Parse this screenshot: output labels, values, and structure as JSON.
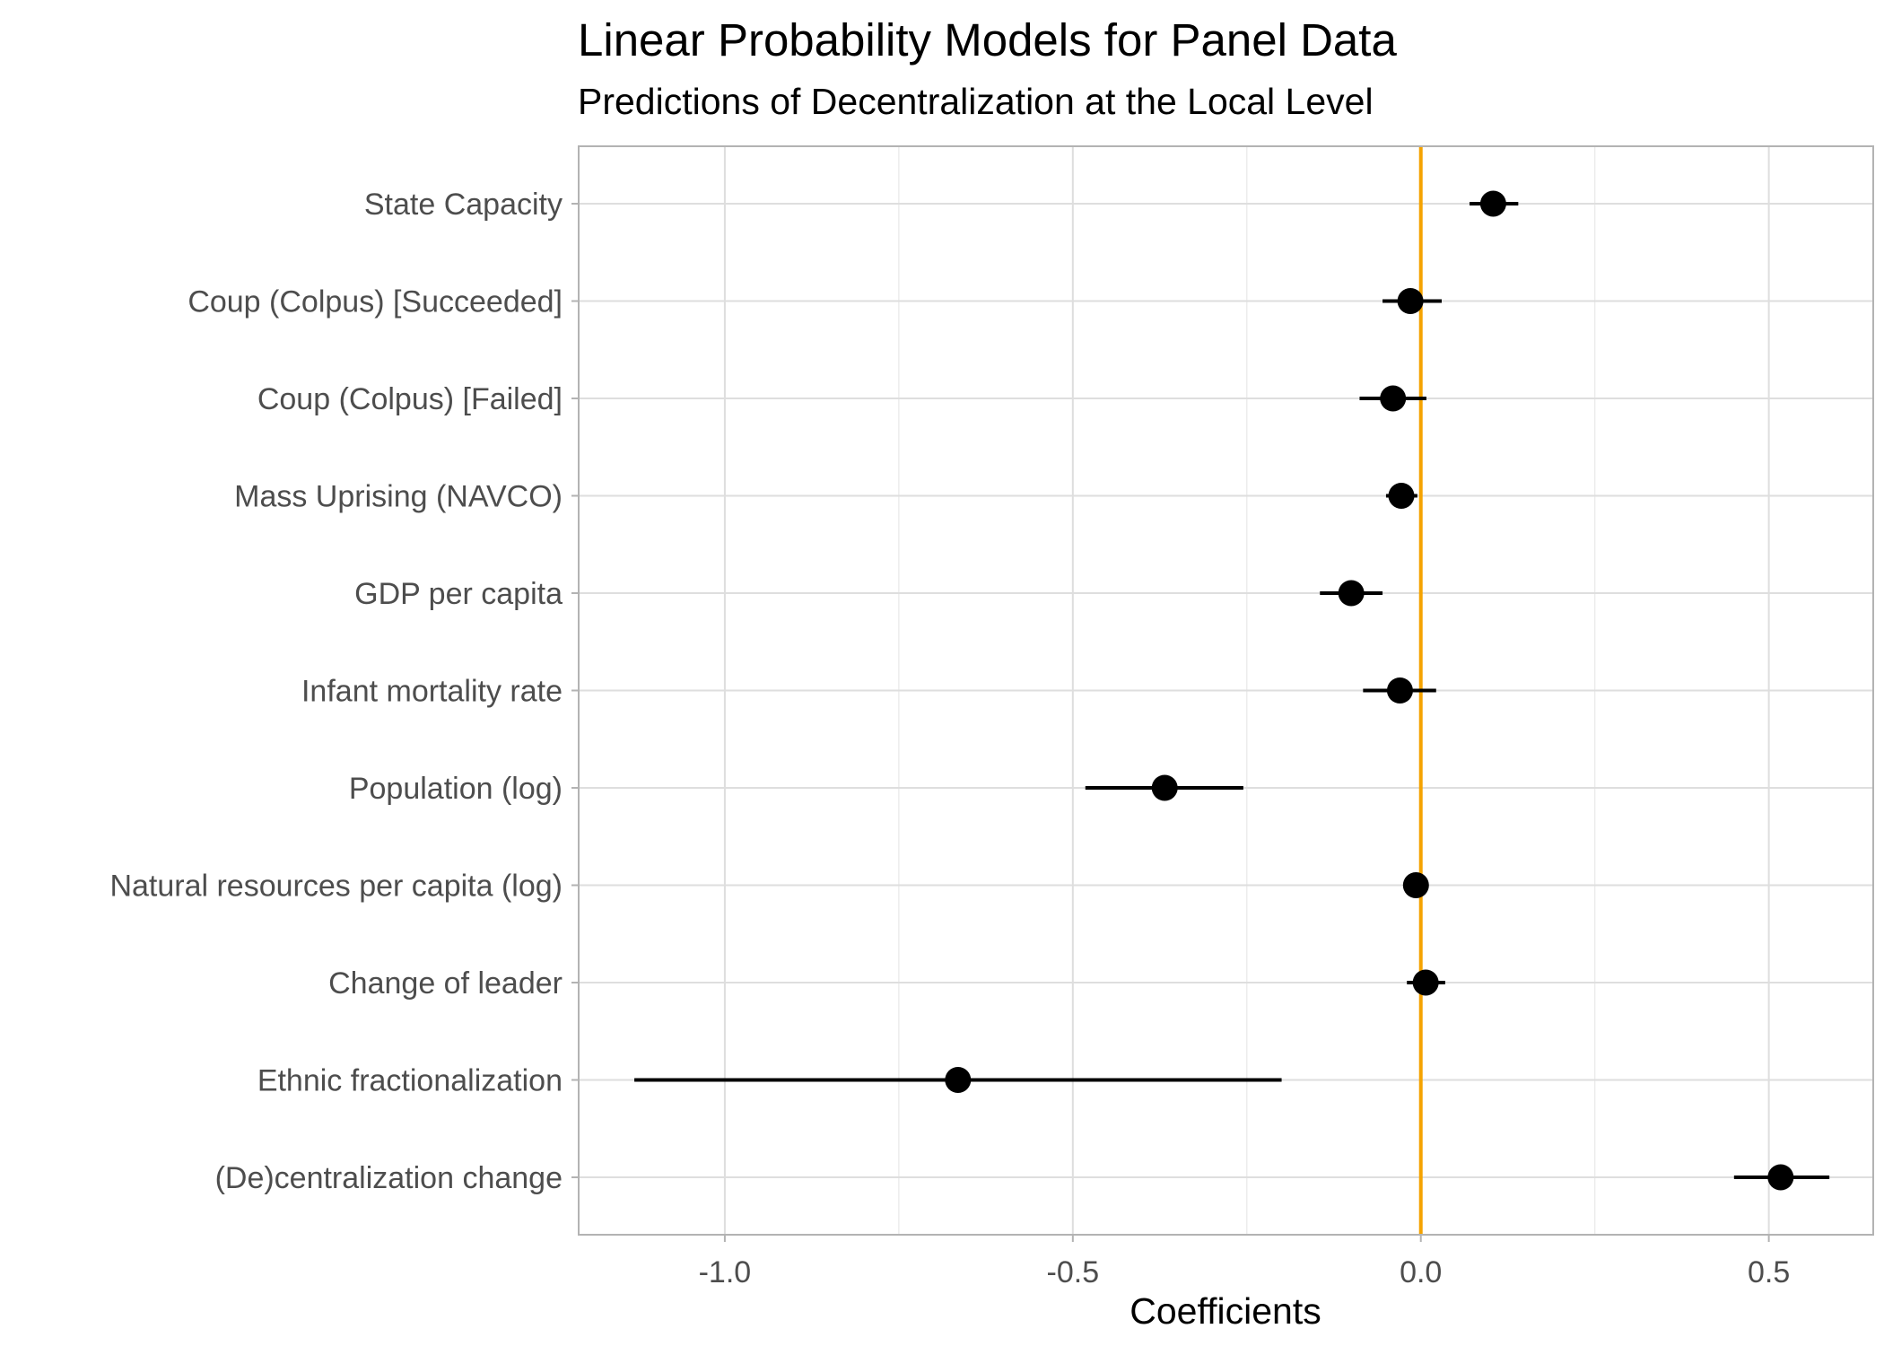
{
  "chart_data": {
    "type": "scatter",
    "title": "Linear Probability Models for Panel Data",
    "subtitle": "Predictions of Decentralization at the Local Level",
    "xlabel": "Coefficients",
    "ylabel": "",
    "xlim": [
      -1.21,
      0.65
    ],
    "x_ticks": [
      -1.0,
      -0.5,
      0.0,
      0.5
    ],
    "x_tick_labels": [
      "-1.0",
      "-0.5",
      "0.0",
      "0.5"
    ],
    "grid": true,
    "reference_line": {
      "x": 0,
      "color": "#f5a300"
    },
    "point_color": "#000000",
    "series": [
      {
        "points": [
          {
            "label": "State Capacity",
            "estimate": 0.104,
            "ci_low": 0.07,
            "ci_high": 0.14
          },
          {
            "label": "Coup (Colpus) [Succeeded]",
            "estimate": -0.015,
            "ci_low": -0.055,
            "ci_high": 0.03
          },
          {
            "label": "Coup (Colpus) [Failed]",
            "estimate": -0.04,
            "ci_low": -0.088,
            "ci_high": 0.008
          },
          {
            "label": "Mass Uprising (NAVCO)",
            "estimate": -0.028,
            "ci_low": -0.05,
            "ci_high": -0.005
          },
          {
            "label": "GDP per capita",
            "estimate": -0.1,
            "ci_low": -0.145,
            "ci_high": -0.055
          },
          {
            "label": "Infant mortality rate",
            "estimate": -0.03,
            "ci_low": -0.083,
            "ci_high": 0.022
          },
          {
            "label": "Population (log)",
            "estimate": -0.368,
            "ci_low": -0.482,
            "ci_high": -0.255
          },
          {
            "label": "Natural resources per capita (log)",
            "estimate": -0.007,
            "ci_low": -0.013,
            "ci_high": -0.001
          },
          {
            "label": "Change of leader",
            "estimate": 0.007,
            "ci_low": -0.02,
            "ci_high": 0.035
          },
          {
            "label": "Ethnic fractionalization",
            "estimate": -0.665,
            "ci_low": -1.13,
            "ci_high": -0.2
          },
          {
            "label": "(De)centralization change",
            "estimate": 0.517,
            "ci_low": 0.45,
            "ci_high": 0.587
          }
        ]
      }
    ]
  }
}
